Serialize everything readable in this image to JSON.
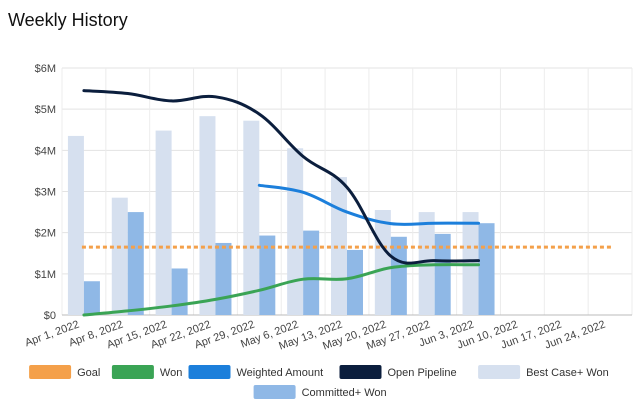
{
  "title": "Weekly History",
  "chart_data": {
    "type": "bar",
    "title": "Weekly History",
    "categories": [
      "Apr 1, 2022",
      "Apr 8, 2022",
      "Apr 15, 2022",
      "Apr 22, 2022",
      "Apr 29, 2022",
      "May 6, 2022",
      "May 13, 2022",
      "May 20, 2022",
      "May 27, 2022",
      "Jun 3, 2022",
      "Jun 10, 2022",
      "Jun 17, 2022",
      "Jun 24, 2022"
    ],
    "y_ticks": [
      "$0",
      "$1M",
      "$2M",
      "$3M",
      "$4M",
      "$5M",
      "$6M"
    ],
    "ylim": [
      0,
      6
    ],
    "grid": true,
    "legend": "bottom",
    "series": [
      {
        "name": "Best Case+ Won",
        "kind": "bar",
        "color": "#d6e0ef",
        "values": [
          4.35,
          2.85,
          4.48,
          4.83,
          4.72,
          4.05,
          3.35,
          2.55,
          2.5,
          2.5,
          null,
          null,
          null
        ]
      },
      {
        "name": "Committed+ Won",
        "kind": "bar",
        "color": "#8fb8e6",
        "values": [
          0.82,
          2.5,
          1.13,
          1.75,
          1.93,
          2.05,
          1.58,
          1.9,
          1.97,
          2.23,
          null,
          null,
          null
        ]
      },
      {
        "name": "Goal",
        "kind": "line",
        "dashed": true,
        "color": "#f4a04a",
        "values": [
          1.65,
          1.65,
          1.65,
          1.65,
          1.65,
          1.65,
          1.65,
          1.65,
          1.65,
          1.65,
          1.65,
          1.65,
          1.65
        ]
      },
      {
        "name": "Won",
        "kind": "line",
        "color": "#3aa455",
        "values": [
          0.0,
          0.1,
          0.22,
          0.38,
          0.6,
          0.87,
          0.88,
          1.15,
          1.22,
          1.22,
          null,
          null,
          null
        ]
      },
      {
        "name": "Weighted Amount",
        "kind": "line",
        "color": "#1c7fdb",
        "values": [
          null,
          null,
          null,
          null,
          3.15,
          2.98,
          2.5,
          2.22,
          2.23,
          2.23,
          null,
          null,
          null
        ]
      },
      {
        "name": "Open Pipeline",
        "kind": "line",
        "color": "#0b1e3d",
        "values": [
          5.45,
          5.38,
          5.2,
          5.3,
          4.88,
          3.85,
          3.1,
          1.43,
          1.32,
          1.32,
          null,
          null,
          null
        ]
      }
    ]
  },
  "legend_items": [
    {
      "label": "Goal",
      "color": "#f4a04a"
    },
    {
      "label": "Won",
      "color": "#3aa455"
    },
    {
      "label": "Weighted Amount",
      "color": "#1c7fdb"
    },
    {
      "label": "Open Pipeline",
      "color": "#0b1e3d"
    },
    {
      "label": "Best Case+ Won",
      "color": "#d6e0ef"
    },
    {
      "label": "Committed+ Won",
      "color": "#8fb8e6"
    }
  ]
}
